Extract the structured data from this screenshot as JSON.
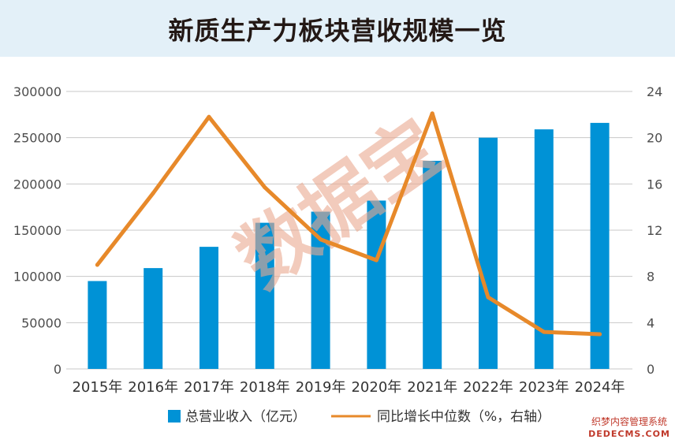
{
  "page": {
    "title": "新质生产力板块营收规模一览",
    "stamp": "数据宝",
    "watermark_line1": "织梦内容管理系统",
    "watermark_line2": "DEDECMS.COM"
  },
  "colors": {
    "bar": "#0092d6",
    "line": "#e7892a",
    "stamp": "#e9a88f",
    "title_bg": "#e3f0f8",
    "grid": "#c8c8c8",
    "text": "#4d4d4d"
  },
  "chart_data": {
    "type": "bar",
    "categories": [
      "2015年",
      "2016年",
      "2017年",
      "2018年",
      "2019年",
      "2020年",
      "2021年",
      "2022年",
      "2023年",
      "2024年"
    ],
    "series": [
      {
        "name": "总营业收入（亿元）",
        "type": "bar",
        "axis": "left",
        "values": [
          95000,
          109000,
          132000,
          158000,
          170000,
          182000,
          225000,
          250000,
          259000,
          266000
        ]
      },
      {
        "name": "同比增长中位数（%，右轴）",
        "type": "line",
        "axis": "right",
        "values": [
          9.0,
          15.2,
          21.8,
          15.7,
          11.2,
          9.4,
          22.1,
          6.2,
          3.2,
          3.0
        ]
      }
    ],
    "y_left": {
      "min": 0,
      "max": 300000,
      "ticks": [
        "0",
        "50000",
        "100000",
        "150000",
        "200000",
        "250000",
        "300000"
      ]
    },
    "y_right": {
      "min": 0,
      "max": 24,
      "ticks": [
        "0",
        "4",
        "8",
        "12",
        "16",
        "20",
        "24"
      ]
    },
    "grid": true,
    "legend_position": "bottom"
  }
}
